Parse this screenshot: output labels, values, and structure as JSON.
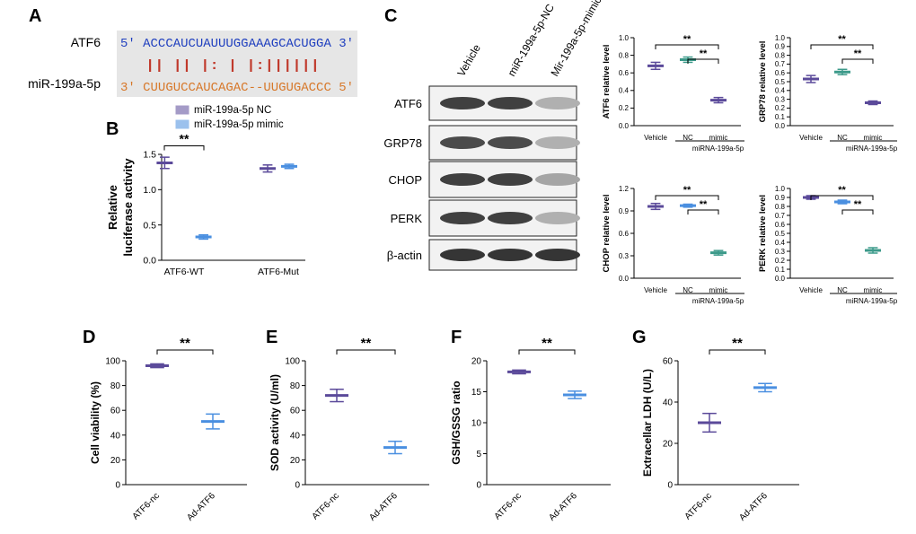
{
  "panel_labels": [
    "A",
    "B",
    "C",
    "D",
    "E",
    "F",
    "G"
  ],
  "panel_a": {
    "label_top": "ATF6",
    "label_bottom": "miR-199a-5p",
    "seq_top": "5' ACCCAUCUAUUUGGAAAGCACUGGA 3'",
    "pairing": "||  || |: |  |:||||||",
    "seq_bottom": "3' CUUGUCCAUCAGAC--UUGUGACCC 5'",
    "top_color": "#1f3fbf",
    "bottom_color": "#d7782a",
    "pair_color": "#c0392b"
  },
  "panel_c_blot": {
    "lanes": [
      "Vehicle",
      "miR-199a-5p-NC",
      "Mir-199a-5p-mimic"
    ],
    "rows": [
      {
        "name": "ATF6",
        "intensity": [
          0.85,
          0.85,
          0.35
        ]
      },
      {
        "name": "GRP78",
        "intensity": [
          0.8,
          0.8,
          0.35
        ]
      },
      {
        "name": "CHOP",
        "intensity": [
          0.85,
          0.85,
          0.4
        ]
      },
      {
        "name": "PERK",
        "intensity": [
          0.85,
          0.85,
          0.35
        ]
      },
      {
        "name": "β-actin",
        "intensity": [
          0.9,
          0.9,
          0.9
        ]
      }
    ]
  },
  "chart_data": [
    {
      "id": "B",
      "type": "scatter",
      "categories": [
        "ATF6-WT",
        "ATF6-Mut"
      ],
      "ylabel": "Relative\nluciferase activity",
      "ylim": [
        0,
        1.5
      ],
      "yticks": [
        "0.0",
        "0.5",
        "1.0",
        "1.5"
      ],
      "legend": [
        "miR-199a-5p NC",
        "miR-199a-5p mimic"
      ],
      "series": [
        {
          "name": "miR-199a-5p NC",
          "color": "#5b4a9a",
          "mean": [
            1.38,
            1.3
          ],
          "err": [
            0.08,
            0.05
          ]
        },
        {
          "name": "miR-199a-5p mimic",
          "color": "#4a8fe0",
          "mean": [
            0.33,
            1.33
          ],
          "err": [
            0.03,
            0.03
          ]
        }
      ],
      "sig": [
        {
          "label": "**"
        }
      ]
    },
    {
      "id": "C1",
      "type": "scatter",
      "categories": [
        "Vehicle",
        "NC",
        "mimic"
      ],
      "group_label": "miRNA-199a-5p",
      "ylabel": "ATF6 relative level",
      "ylim": [
        0,
        1.0
      ],
      "yticks": [
        "0.0",
        "0.2",
        "0.4",
        "0.6",
        "0.8",
        "1.0"
      ],
      "colors": [
        "#5b4a9a",
        "#3c9a8a",
        "#5b4a9a"
      ],
      "mean": [
        0.68,
        0.75,
        0.29
      ],
      "err": [
        0.04,
        0.03,
        0.03
      ],
      "sig": [
        "**",
        "**"
      ]
    },
    {
      "id": "C2",
      "type": "scatter",
      "categories": [
        "Vehicle",
        "NC",
        "mimic"
      ],
      "group_label": "miRNA-199a-5p",
      "ylabel": "GRP78 relative level",
      "ylim": [
        0,
        1.0
      ],
      "yticks": [
        "0.0",
        "0.1",
        "0.2",
        "0.3",
        "0.4",
        "0.5",
        "0.6",
        "0.7",
        "0.8",
        "0.9",
        "1.0"
      ],
      "colors": [
        "#5b4a9a",
        "#3c9a8a",
        "#5b4a9a"
      ],
      "mean": [
        0.53,
        0.61,
        0.26
      ],
      "err": [
        0.04,
        0.03,
        0.02
      ],
      "sig": [
        "**",
        "**"
      ]
    },
    {
      "id": "C3",
      "type": "scatter",
      "categories": [
        "Vehicle",
        "NC",
        "mimic"
      ],
      "group_label": "miRNA-199a-5p",
      "ylabel": "CHOP relative level",
      "ylim": [
        0,
        1.2
      ],
      "yticks": [
        "0.0",
        "0.3",
        "0.6",
        "0.9",
        "1.2"
      ],
      "colors": [
        "#5b4a9a",
        "#4a8fe0",
        "#3c9a8a"
      ],
      "mean": [
        0.96,
        0.97,
        0.34
      ],
      "err": [
        0.04,
        0.02,
        0.03
      ],
      "sig": [
        "**",
        "**"
      ]
    },
    {
      "id": "C4",
      "type": "scatter",
      "categories": [
        "Vehicle",
        "NC",
        "mimic"
      ],
      "group_label": "miRNA-199a-5p",
      "ylabel": "PERK relative level",
      "ylim": [
        0,
        1.0
      ],
      "yticks": [
        "0.0",
        "0.1",
        "0.2",
        "0.3",
        "0.4",
        "0.5",
        "0.6",
        "0.7",
        "0.8",
        "0.9",
        "1.0"
      ],
      "colors": [
        "#5b4a9a",
        "#4a8fe0",
        "#3c9a8a"
      ],
      "mean": [
        0.9,
        0.85,
        0.31
      ],
      "err": [
        0.02,
        0.02,
        0.03
      ],
      "sig": [
        "**",
        "**"
      ]
    },
    {
      "id": "D",
      "type": "scatter",
      "categories": [
        "ATF6-nc",
        "Ad-ATF6"
      ],
      "ylabel": "Cell viability (%)",
      "ylim": [
        0,
        100
      ],
      "yticks": [
        "0",
        "20",
        "40",
        "60",
        "80",
        "100"
      ],
      "colors": [
        "#5b4a9a",
        "#4a8fe0"
      ],
      "mean": [
        96,
        51
      ],
      "err": [
        1.5,
        6
      ],
      "sig": [
        "**"
      ]
    },
    {
      "id": "E",
      "type": "scatter",
      "categories": [
        "ATF6-nc",
        "Ad-ATF6"
      ],
      "ylabel": "SOD activity (U/ml)",
      "ylim": [
        0,
        100
      ],
      "yticks": [
        "0",
        "20",
        "40",
        "60",
        "80",
        "100"
      ],
      "colors": [
        "#5b4a9a",
        "#4a8fe0"
      ],
      "mean": [
        72,
        30
      ],
      "err": [
        5,
        5
      ],
      "sig": [
        "**"
      ]
    },
    {
      "id": "F",
      "type": "scatter",
      "categories": [
        "ATF6-nc",
        "Ad-ATF6"
      ],
      "ylabel": "GSH/GSSG ratio",
      "ylim": [
        0,
        20
      ],
      "yticks": [
        "0",
        "5",
        "10",
        "15",
        "20"
      ],
      "colors": [
        "#5b4a9a",
        "#4a8fe0"
      ],
      "mean": [
        18.2,
        14.5
      ],
      "err": [
        0.3,
        0.6
      ],
      "sig": [
        "**"
      ]
    },
    {
      "id": "G",
      "type": "scatter",
      "categories": [
        "ATF6-nc",
        "Ad-ATF6"
      ],
      "ylabel": "Extracellar LDH (U/L)",
      "ylim": [
        0,
        60
      ],
      "yticks": [
        "0",
        "20",
        "40",
        "60"
      ],
      "colors": [
        "#5b4a9a",
        "#4a8fe0"
      ],
      "mean": [
        30,
        47
      ],
      "err": [
        4.5,
        2
      ],
      "sig": [
        "**"
      ]
    }
  ]
}
